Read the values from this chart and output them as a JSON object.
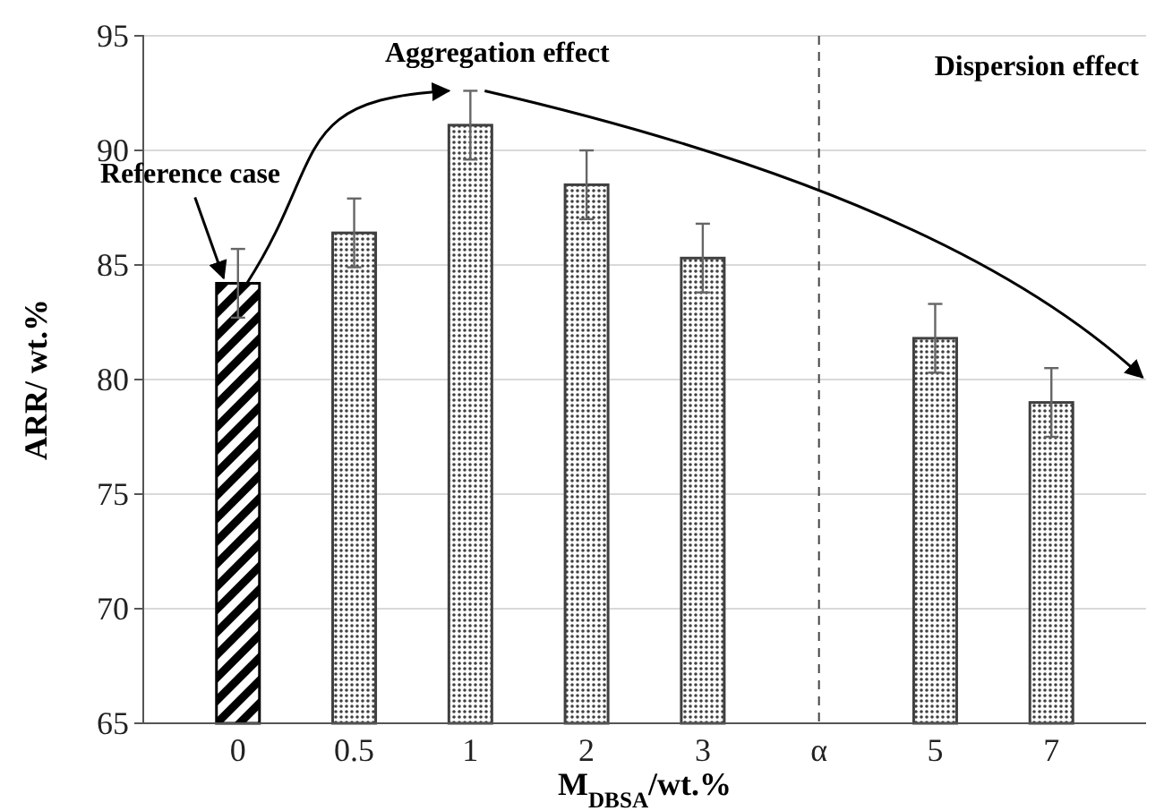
{
  "chart_data": {
    "type": "bar",
    "xlabel": "M$_{DBSA}$/wt.%",
    "ylabel": "ARR/ wt.%",
    "categories": [
      "0",
      "0.5",
      "1",
      "2",
      "3",
      "α",
      "5",
      "7"
    ],
    "values": [
      84.2,
      86.4,
      91.1,
      88.5,
      85.3,
      null,
      81.8,
      79.0
    ],
    "errors": [
      1.5,
      1.5,
      1.5,
      1.5,
      1.5,
      null,
      1.5,
      1.5
    ],
    "colors": [
      "#000000",
      "#404040",
      "#404040",
      "#404040",
      "#404040",
      null,
      "#404040",
      "#404040"
    ],
    "ylim": [
      65,
      95
    ],
    "yticks": [
      65,
      70,
      75,
      80,
      85,
      90,
      95
    ],
    "grid": "y",
    "ref_lines": [
      {
        "axis": "x",
        "value": "α",
        "label": null,
        "line_style": "dashed",
        "color": "#444444"
      }
    ],
    "annotations": [
      {
        "text": "Reference case",
        "x": "0",
        "y": 84.2
      },
      "Aggregation effect",
      "Dispersion effect"
    ]
  }
}
